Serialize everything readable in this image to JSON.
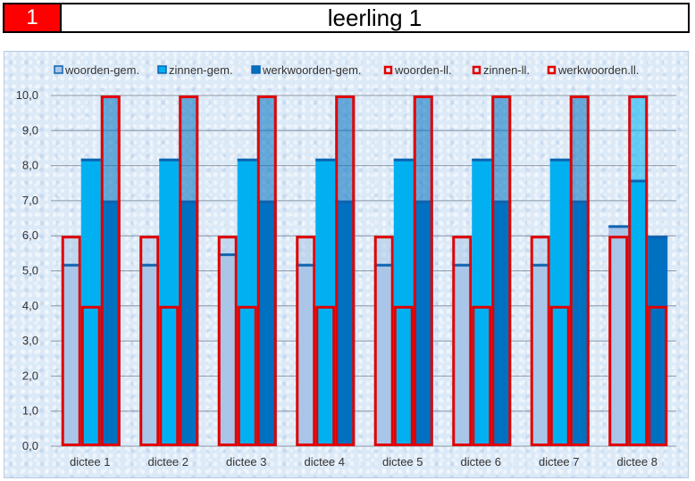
{
  "header": {
    "number": "1",
    "title": "leerling 1"
  },
  "chart_data": {
    "type": "bar",
    "categories": [
      "dictee 1",
      "dictee 2",
      "dictee 3",
      "dictee 4",
      "dictee 5",
      "dictee 6",
      "dictee 7",
      "dictee 8"
    ],
    "ylim": [
      0,
      10
    ],
    "yticks": [
      "0,0",
      "1,0",
      "2,0",
      "3,0",
      "4,0",
      "5,0",
      "6,0",
      "7,0",
      "8,0",
      "9,0",
      "10,0"
    ],
    "grid": true,
    "legend": "top",
    "series": [
      {
        "name": "woorden-gem.",
        "kind": "avg",
        "group": 0,
        "color": "#a9c6e8",
        "values": [
          5.2,
          5.2,
          5.5,
          5.2,
          5.2,
          5.2,
          5.2,
          6.3
        ]
      },
      {
        "name": "zinnen-gem.",
        "kind": "avg",
        "group": 1,
        "color": "#00b0f0",
        "values": [
          8.2,
          8.2,
          8.2,
          8.2,
          8.2,
          8.2,
          8.2,
          7.6
        ]
      },
      {
        "name": "werkwoorden-gem.",
        "kind": "avg",
        "group": 2,
        "color": "#0070c0",
        "values": [
          7.0,
          7.0,
          7.0,
          7.0,
          7.0,
          7.0,
          7.0,
          6.0
        ]
      },
      {
        "name": "woorden-ll.",
        "kind": "student",
        "group": 0,
        "color": "#e00000",
        "values": [
          6.0,
          6.0,
          6.0,
          6.0,
          6.0,
          6.0,
          6.0,
          6.0
        ]
      },
      {
        "name": "zinnen-ll.",
        "kind": "student",
        "group": 1,
        "color": "#e00000",
        "values": [
          4.0,
          4.0,
          4.0,
          4.0,
          4.0,
          4.0,
          4.0,
          10.0
        ]
      },
      {
        "name": "werkwoorden.ll.",
        "kind": "student",
        "group": 2,
        "color": "#e00000",
        "values": [
          10.0,
          10.0,
          10.0,
          10.0,
          10.0,
          10.0,
          10.0,
          4.0
        ]
      }
    ]
  }
}
